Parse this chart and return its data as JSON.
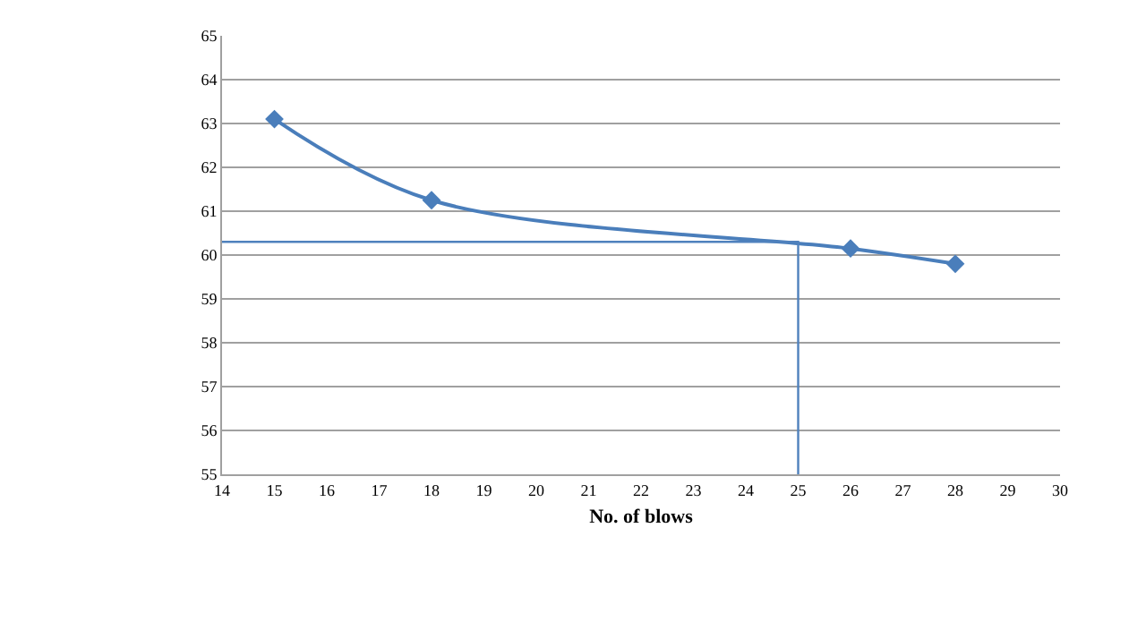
{
  "chart_data": {
    "type": "line",
    "xlabel": "No. of blows",
    "series": [
      {
        "x": [
          15,
          18,
          26,
          28
        ],
        "values": [
          63.1,
          61.25,
          60.15,
          59.8
        ],
        "color": "#4a7ebb",
        "marker": "diamond"
      },
      {
        "x": [
          14,
          25,
          25
        ],
        "values": [
          60.3,
          60.3,
          55
        ],
        "color": "#4f81bd",
        "marker": "none"
      }
    ],
    "xlim": [
      14,
      30
    ],
    "xticks": [
      14,
      15,
      16,
      17,
      18,
      19,
      20,
      21,
      22,
      23,
      24,
      25,
      26,
      27,
      28,
      29,
      30
    ],
    "ylim": [
      55,
      65
    ],
    "yticks": [
      55,
      56,
      57,
      58,
      59,
      60,
      61,
      62,
      63,
      64,
      65
    ],
    "grid": "y"
  }
}
